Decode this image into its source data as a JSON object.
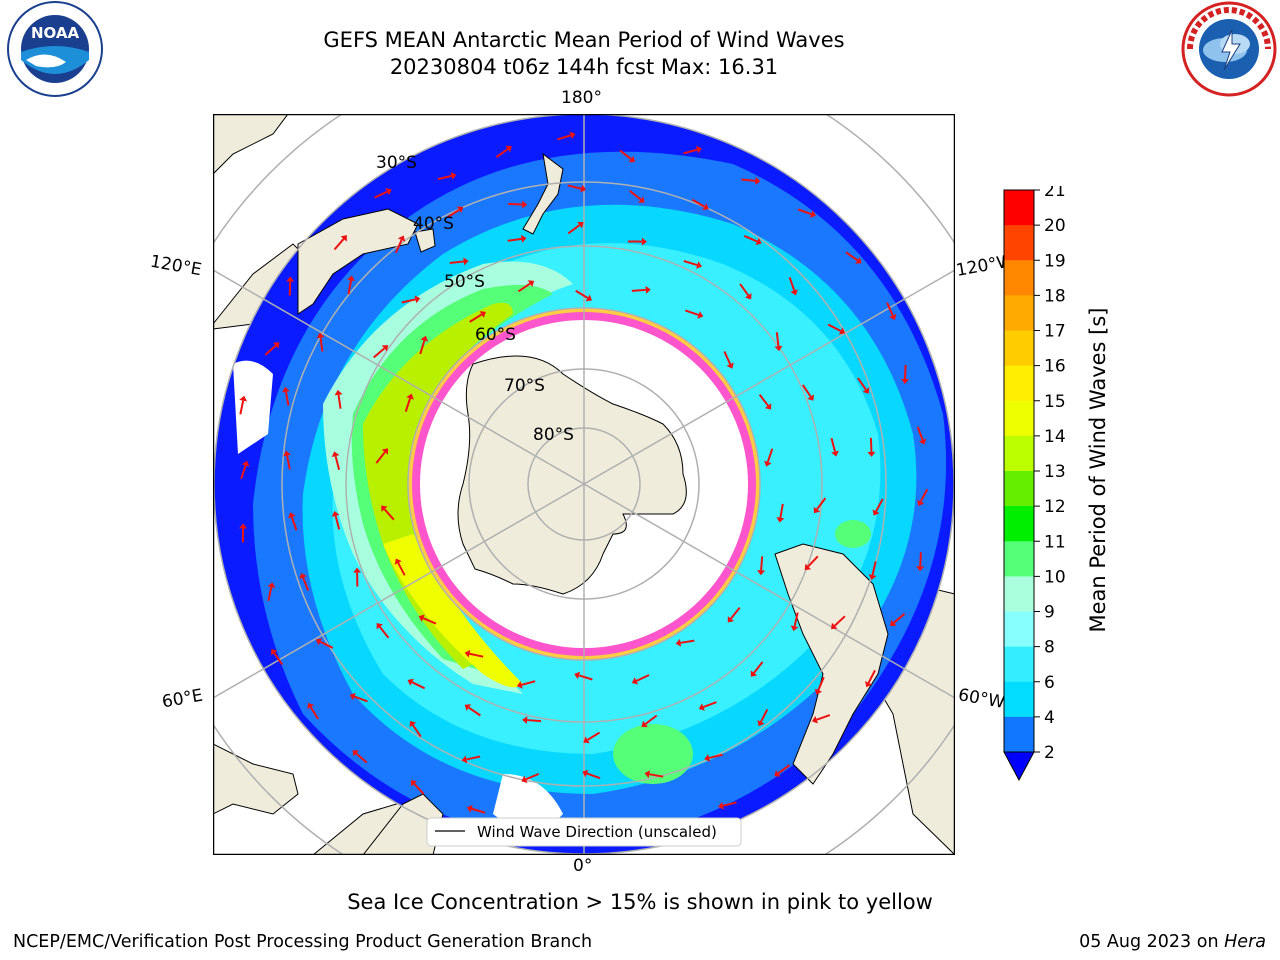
{
  "title": {
    "line1": "GEFS MEAN Antarctic Mean Period of Wind Waves",
    "line2": "20230804 t06z 144h fcst   Max: 16.31"
  },
  "logos": {
    "left": "noaa-logo",
    "right": "nws-logo"
  },
  "map": {
    "projection": "south-polar-stereographic",
    "longitude_labels": {
      "top": "180°",
      "bottom": "0°",
      "upper_left": "120°E",
      "upper_right": "120°W",
      "lower_left": "60°E",
      "lower_right": "60°W"
    },
    "latitude_labels": [
      "30°S",
      "40°S",
      "50°S",
      "60°S",
      "70°S",
      "80°S"
    ],
    "legend_label": "Wind Wave Direction (unscaled)",
    "arrow_color": "#ee1111",
    "land_color": "#efecdc",
    "ice_edge_colors": [
      "#ff55cc",
      "#ffcc44"
    ]
  },
  "colorbar": {
    "label": "Mean Period of Wind Waves [s]",
    "ticks": [
      "2",
      "4",
      "6",
      "8",
      "9",
      "10",
      "11",
      "12",
      "13",
      "14",
      "15",
      "16",
      "17",
      "18",
      "19",
      "20",
      "21"
    ],
    "colors": [
      "#0000ff",
      "#1177ff",
      "#00ddff",
      "#33eeff",
      "#88ffff",
      "#aaffdd",
      "#55ff77",
      "#00ee00",
      "#66ee00",
      "#bbff00",
      "#eeff00",
      "#ffee00",
      "#ffcc00",
      "#ffaa00",
      "#ff8800",
      "#ff4400",
      "#ff0000"
    ],
    "extend": "min"
  },
  "notes": {
    "sea_ice": "Sea Ice Concentration > 15% is shown in pink to yellow",
    "producer": "NCEP/EMC/Verification Post Processing Product Generation Branch",
    "date": "05 Aug 2023 on",
    "host": "Hera"
  }
}
